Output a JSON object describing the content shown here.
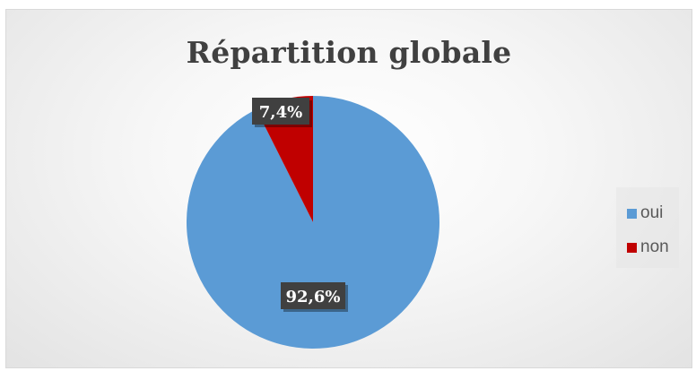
{
  "chart_data": {
    "type": "pie",
    "title": "Répartition globale",
    "categories": [
      "oui",
      "non"
    ],
    "values": [
      92.6,
      7.4
    ],
    "data_labels": [
      "92,6%",
      "7,4%"
    ],
    "colors": [
      "#5B9BD5",
      "#C00000"
    ],
    "legend_position": "right"
  },
  "legend": {
    "items": [
      {
        "label": "oui",
        "color": "#5B9BD5"
      },
      {
        "label": "non",
        "color": "#C00000"
      }
    ]
  }
}
